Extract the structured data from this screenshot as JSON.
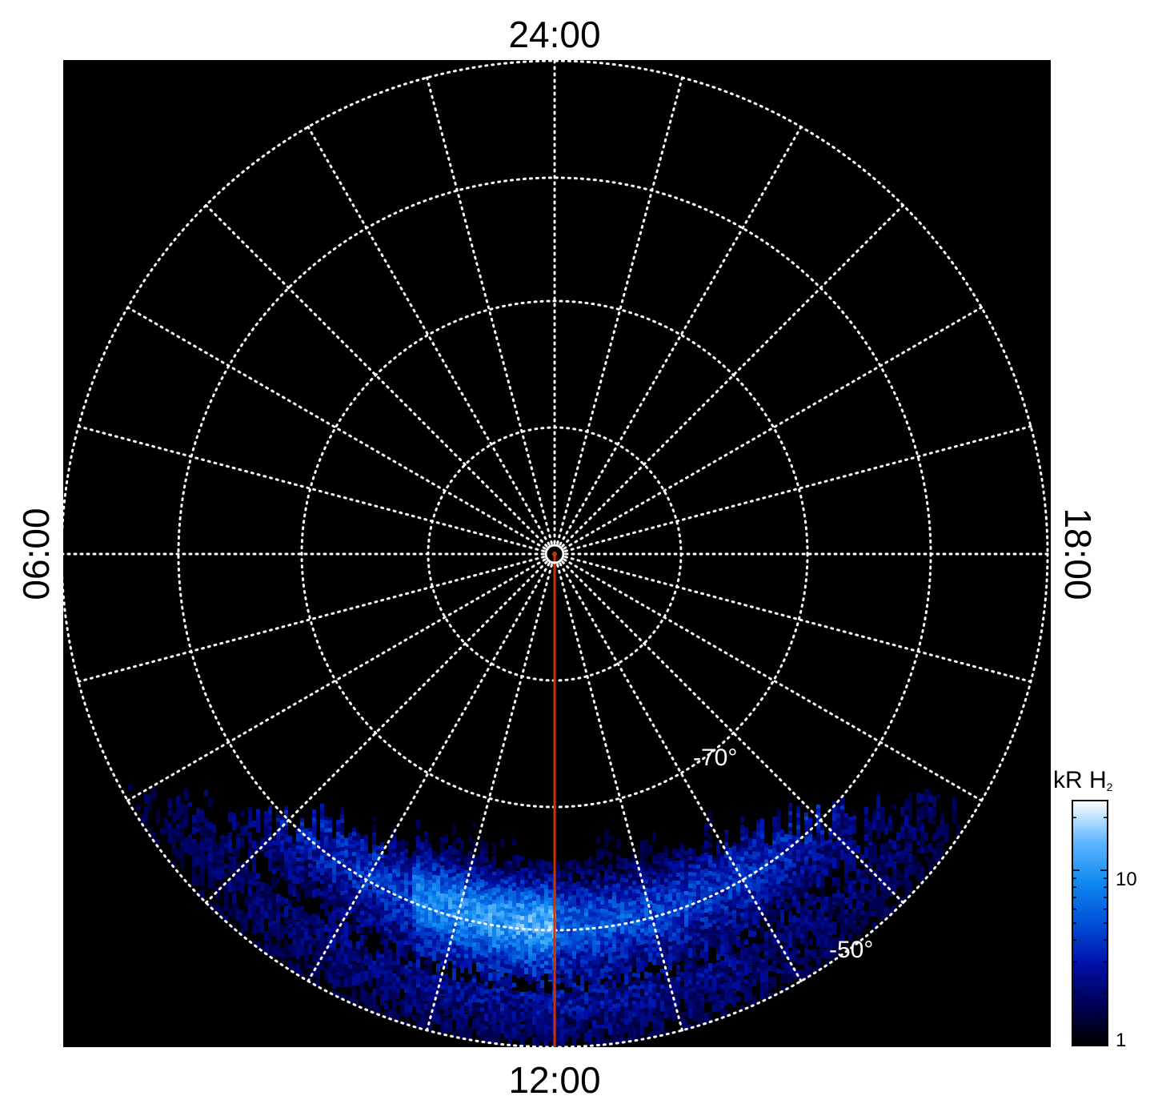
{
  "chart_data": {
    "type": "heatmap",
    "projection": "polar",
    "title": "",
    "local_time_labels": {
      "top": "24:00",
      "bottom": "12:00",
      "left": "06:00",
      "right": "18:00"
    },
    "latitude_circles_deg": [
      -85,
      -80,
      -70,
      -60,
      -50
    ],
    "latitude_labels": [
      {
        "value": -70,
        "text": "-70°"
      },
      {
        "value": -50,
        "text": "-50°"
      }
    ],
    "meridian_count": 24,
    "grid": true,
    "colorbar": {
      "title": "kR H",
      "title_subscript": "2",
      "scale": "log",
      "range": [
        1,
        25
      ],
      "ticks": [
        {
          "value": 1,
          "label": "1"
        },
        {
          "value": 10,
          "label": "10"
        }
      ],
      "colors": [
        "#000000",
        "#000055",
        "#0010a8",
        "#0050d8",
        "#1088f0",
        "#60b8ff",
        "#ffffff"
      ]
    },
    "background_color": "#000000",
    "grid_color": "#ffffff",
    "meridian_marker_color": "#cc3300",
    "meridian_marker_local_time": "12:00"
  }
}
